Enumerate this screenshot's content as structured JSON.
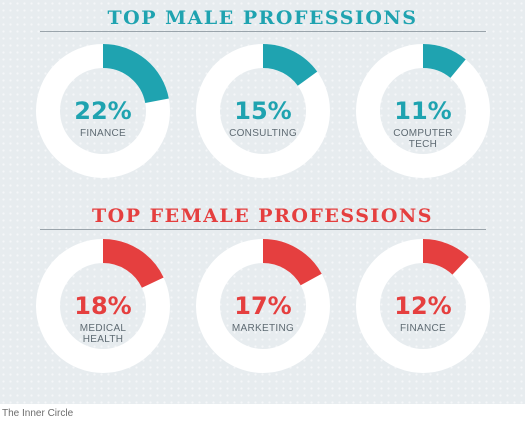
{
  "sections": [
    {
      "title": "TOP MALE PROFESSIONS",
      "color": "#1fa3b0"
    },
    {
      "title": "TOP FEMALE PROFESSIONS",
      "color": "#e53f3f"
    }
  ],
  "chart_data": [
    {
      "type": "pie",
      "title": "TOP MALE PROFESSIONS",
      "categories": [
        "FINANCE",
        "CONSULTING",
        "COMPUTER TECH"
      ],
      "values": [
        22,
        15,
        11
      ],
      "labels": [
        "22%",
        "15%",
        "11%"
      ],
      "category_lines": [
        [
          "FINANCE"
        ],
        [
          "CONSULTING"
        ],
        [
          "COMPUTER",
          "TECH"
        ]
      ],
      "color": "#1fa3b0"
    },
    {
      "type": "pie",
      "title": "TOP FEMALE PROFESSIONS",
      "categories": [
        "MEDICAL HEALTH",
        "MARKETING",
        "FINANCE"
      ],
      "values": [
        18,
        17,
        12
      ],
      "labels": [
        "18%",
        "17%",
        "12%"
      ],
      "category_lines": [
        [
          "MEDICAL",
          "HEALTH"
        ],
        [
          "MARKETING"
        ],
        [
          "FINANCE"
        ]
      ],
      "color": "#e53f3f"
    }
  ],
  "caption": "The Inner Circle"
}
